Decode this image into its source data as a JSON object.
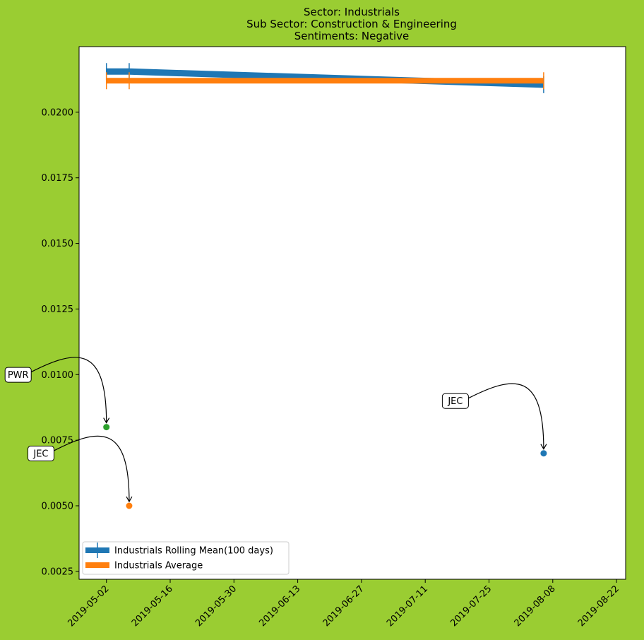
{
  "chart_data": {
    "type": "line",
    "title_lines": [
      "Sector:  Industrials",
      "Sub Sector:  Construction & Engineering",
      "Sentiments:  Negative"
    ],
    "xlabel": "",
    "ylabel": "",
    "x_ticks": [
      "2019-05-02",
      "2019-05-16",
      "2019-05-30",
      "2019-06-13",
      "2019-06-27",
      "2019-07-11",
      "2019-07-25",
      "2019-08-08",
      "2019-08-22"
    ],
    "y_ticks": [
      "0.0025",
      "0.0050",
      "0.0075",
      "0.0100",
      "0.0125",
      "0.0150",
      "0.0175",
      "0.0200"
    ],
    "xlim": [
      "2019-04-26",
      "2019-08-24"
    ],
    "ylim": [
      0.0022,
      0.0225
    ],
    "grid": false,
    "legend_position": "lower-left",
    "series": [
      {
        "name": "Industrials Rolling Mean(100 days)",
        "color": "#1f77b4",
        "x": [
          "2019-05-02",
          "2019-05-07",
          "2019-08-06"
        ],
        "y": [
          0.02155,
          0.02155,
          0.02105
        ],
        "markers": "vertical ticks"
      },
      {
        "name": "Industrials Average",
        "color": "#ff7f0e",
        "x": [
          "2019-05-02",
          "2019-05-07",
          "2019-08-06"
        ],
        "y": [
          0.0212,
          0.0212,
          0.0212
        ],
        "markers": "vertical ticks"
      }
    ],
    "points": [
      {
        "label": "PWR",
        "x": "2019-05-02",
        "y": 0.008,
        "color": "#2ca02c"
      },
      {
        "label": "JEC",
        "x": "2019-05-07",
        "y": 0.005,
        "color": "#ff7f0e"
      },
      {
        "label": "JEC",
        "x": "2019-08-06",
        "y": 0.007,
        "color": "#1f77b4"
      }
    ]
  }
}
